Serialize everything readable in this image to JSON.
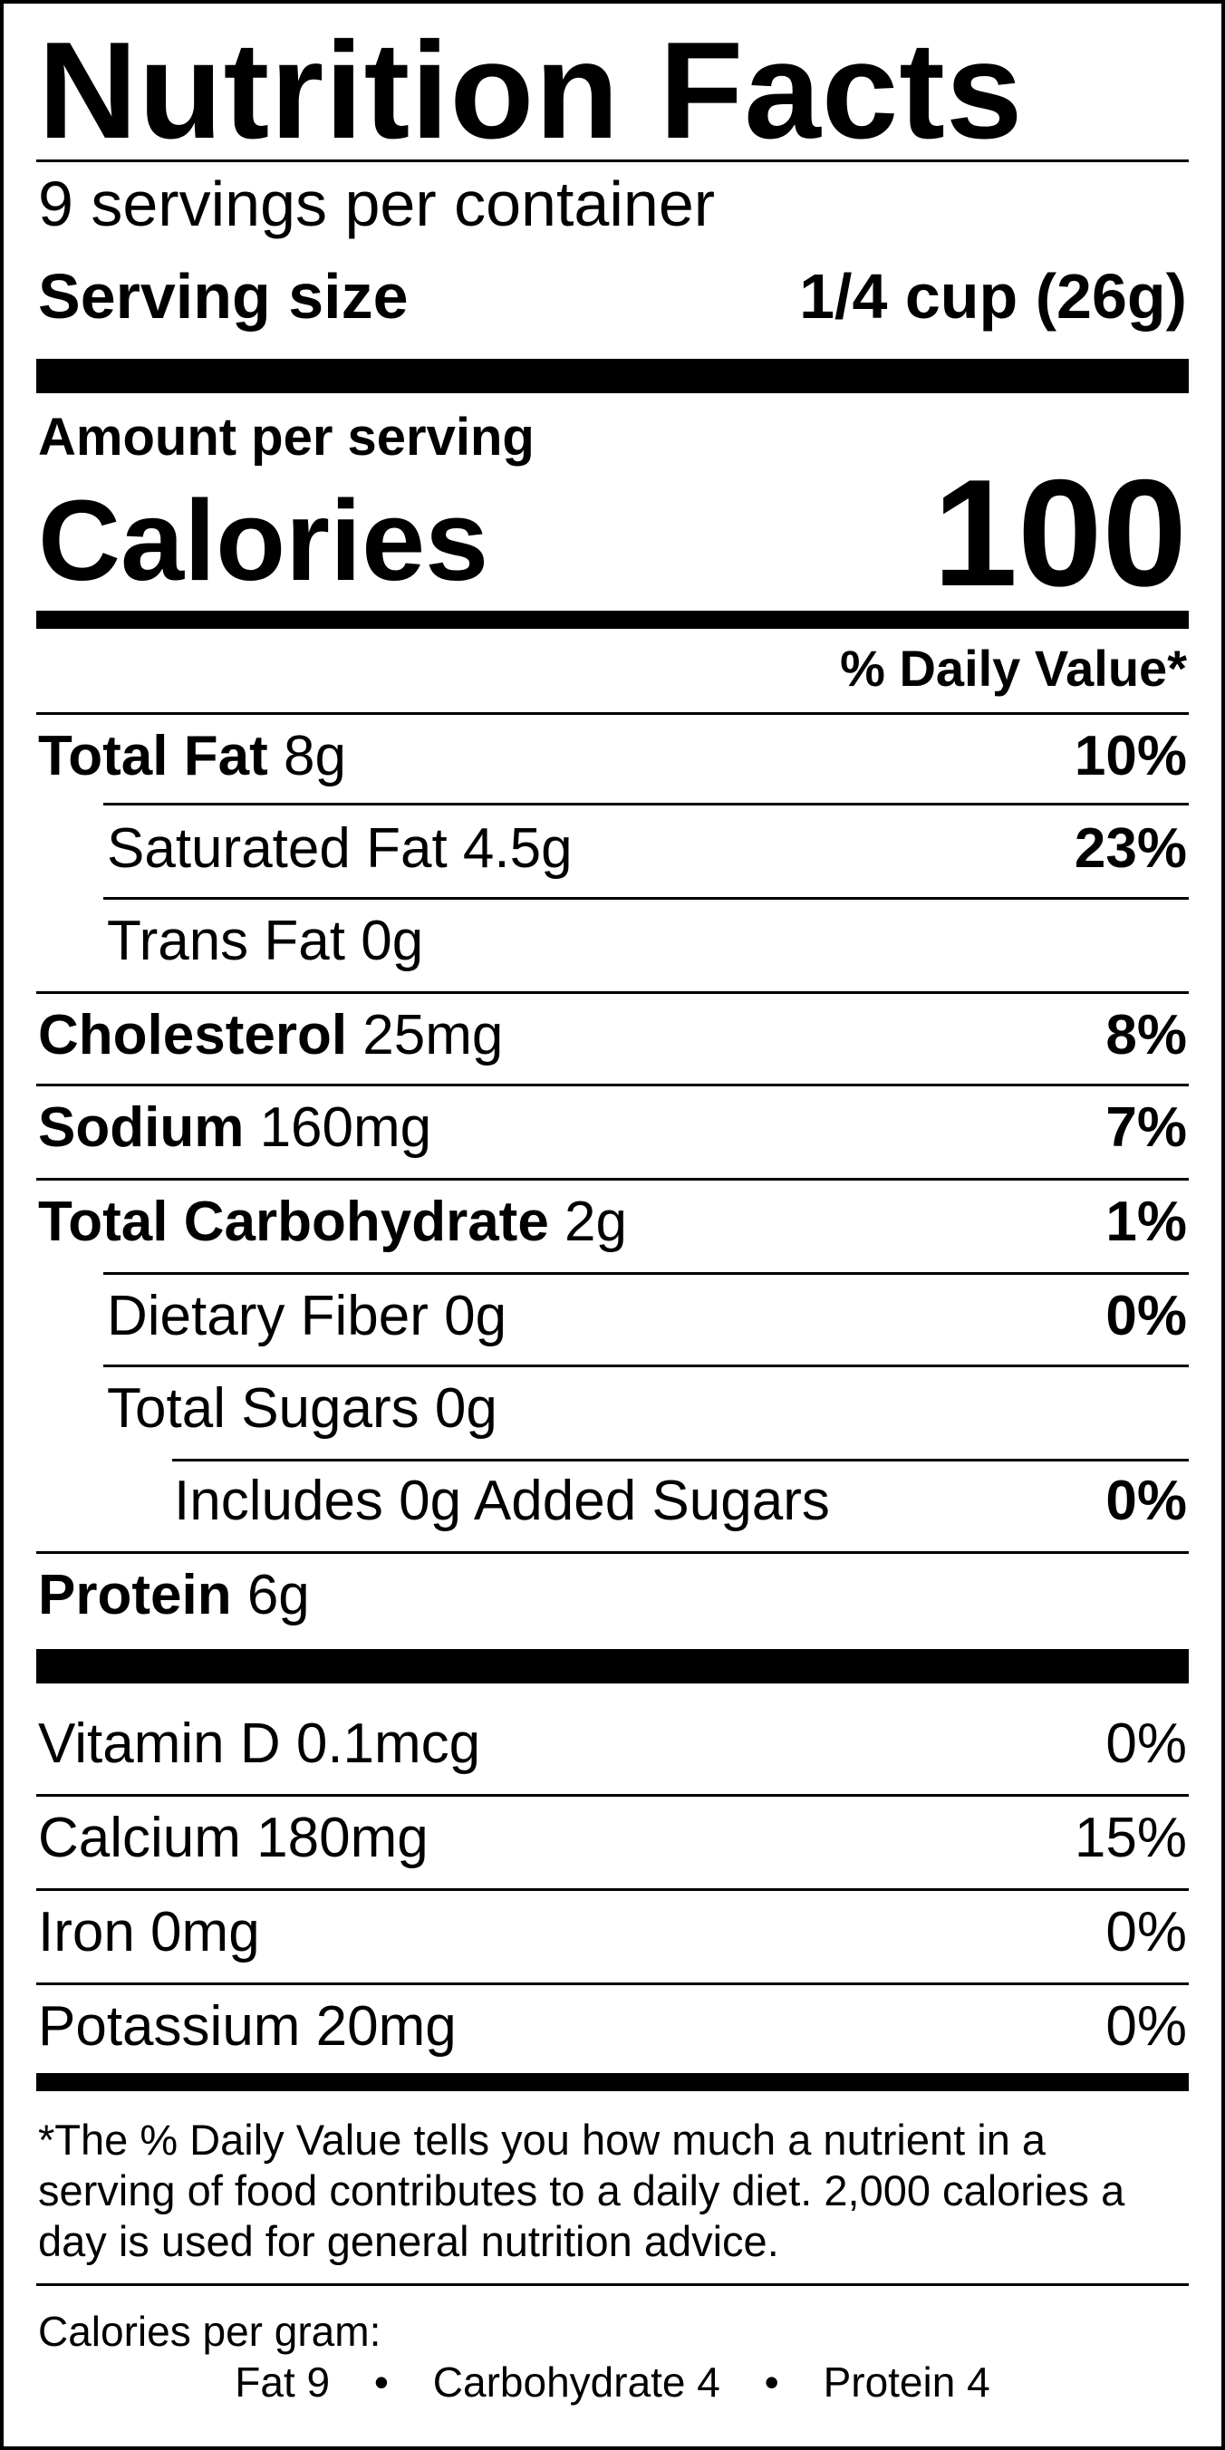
{
  "title": "Nutrition Facts",
  "servings_per_container": "9 servings per container",
  "serving_size": {
    "label": "Serving size",
    "value": "1/4 cup (26g)"
  },
  "amount_per_serving": "Amount per serving",
  "calories": {
    "label": "Calories",
    "value": "100"
  },
  "daily_value_header": "% Daily Value*",
  "nutrients": [
    {
      "name": "Total Fat",
      "amount": "8g",
      "dv": "10%"
    },
    {
      "name": "Saturated Fat",
      "amount": "4.5g",
      "dv": "23%"
    },
    {
      "name": "Trans Fat",
      "amount": "0g",
      "dv": ""
    },
    {
      "name": "Cholesterol",
      "amount": "25mg",
      "dv": "8%"
    },
    {
      "name": "Sodium",
      "amount": "160mg",
      "dv": "7%"
    },
    {
      "name": "Total Carbohydrate",
      "amount": "2g",
      "dv": "1%"
    },
    {
      "name": "Dietary Fiber",
      "amount": "0g",
      "dv": "0%"
    },
    {
      "name": "Total Sugars",
      "amount": "0g",
      "dv": ""
    },
    {
      "name": "Includes 0g Added Sugars",
      "amount": "",
      "dv": "0%"
    },
    {
      "name": "Protein",
      "amount": "6g",
      "dv": ""
    }
  ],
  "vitamins": [
    {
      "label": "Vitamin D 0.1mcg",
      "dv": "0%"
    },
    {
      "label": "Calcium 180mg",
      "dv": "15%"
    },
    {
      "label": "Iron 0mg",
      "dv": "0%"
    },
    {
      "label": "Potassium 20mg",
      "dv": "0%"
    }
  ],
  "footnote": "*The % Daily Value tells you how much a nutrient in a serving of food contributes to a daily diet. 2,000 calories a day is used for general nutrition advice.",
  "calories_per_gram": {
    "label": "Calories per gram:",
    "fat": "Fat 9",
    "separator": "•",
    "carbohydrate": "Carbohydrate 4",
    "protein": "Protein 4"
  }
}
